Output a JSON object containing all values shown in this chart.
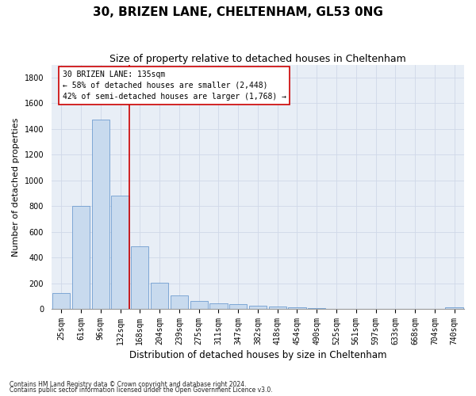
{
  "title": "30, BRIZEN LANE, CHELTENHAM, GL53 0NG",
  "subtitle": "Size of property relative to detached houses in Cheltenham",
  "xlabel": "Distribution of detached houses by size in Cheltenham",
  "ylabel": "Number of detached properties",
  "footnote1": "Contains HM Land Registry data © Crown copyright and database right 2024.",
  "footnote2": "Contains public sector information licensed under the Open Government Licence v3.0.",
  "categories": [
    "25sqm",
    "61sqm",
    "96sqm",
    "132sqm",
    "168sqm",
    "204sqm",
    "239sqm",
    "275sqm",
    "311sqm",
    "347sqm",
    "382sqm",
    "418sqm",
    "454sqm",
    "490sqm",
    "525sqm",
    "561sqm",
    "597sqm",
    "633sqm",
    "668sqm",
    "704sqm",
    "740sqm"
  ],
  "values": [
    125,
    800,
    1475,
    880,
    490,
    205,
    105,
    65,
    45,
    35,
    25,
    20,
    10,
    5,
    3,
    2,
    2,
    1,
    1,
    1,
    15
  ],
  "bar_color": "#c8daee",
  "bar_edge_color": "#5b8fc9",
  "vline_color": "#cc0000",
  "vline_bar_index": 3,
  "annotation_text": "30 BRIZEN LANE: 135sqm\n← 58% of detached houses are smaller (2,448)\n42% of semi-detached houses are larger (1,768) →",
  "ylim": [
    0,
    1900
  ],
  "yticks": [
    0,
    200,
    400,
    600,
    800,
    1000,
    1200,
    1400,
    1600,
    1800
  ],
  "background_color": "#ffffff",
  "plot_bg_color": "#e8eef6",
  "grid_color": "#d0d8e8",
  "title_fontsize": 11,
  "subtitle_fontsize": 9,
  "ylabel_fontsize": 8,
  "xlabel_fontsize": 8.5,
  "tick_fontsize": 7,
  "annot_fontsize": 7,
  "footnote_fontsize": 5.5
}
